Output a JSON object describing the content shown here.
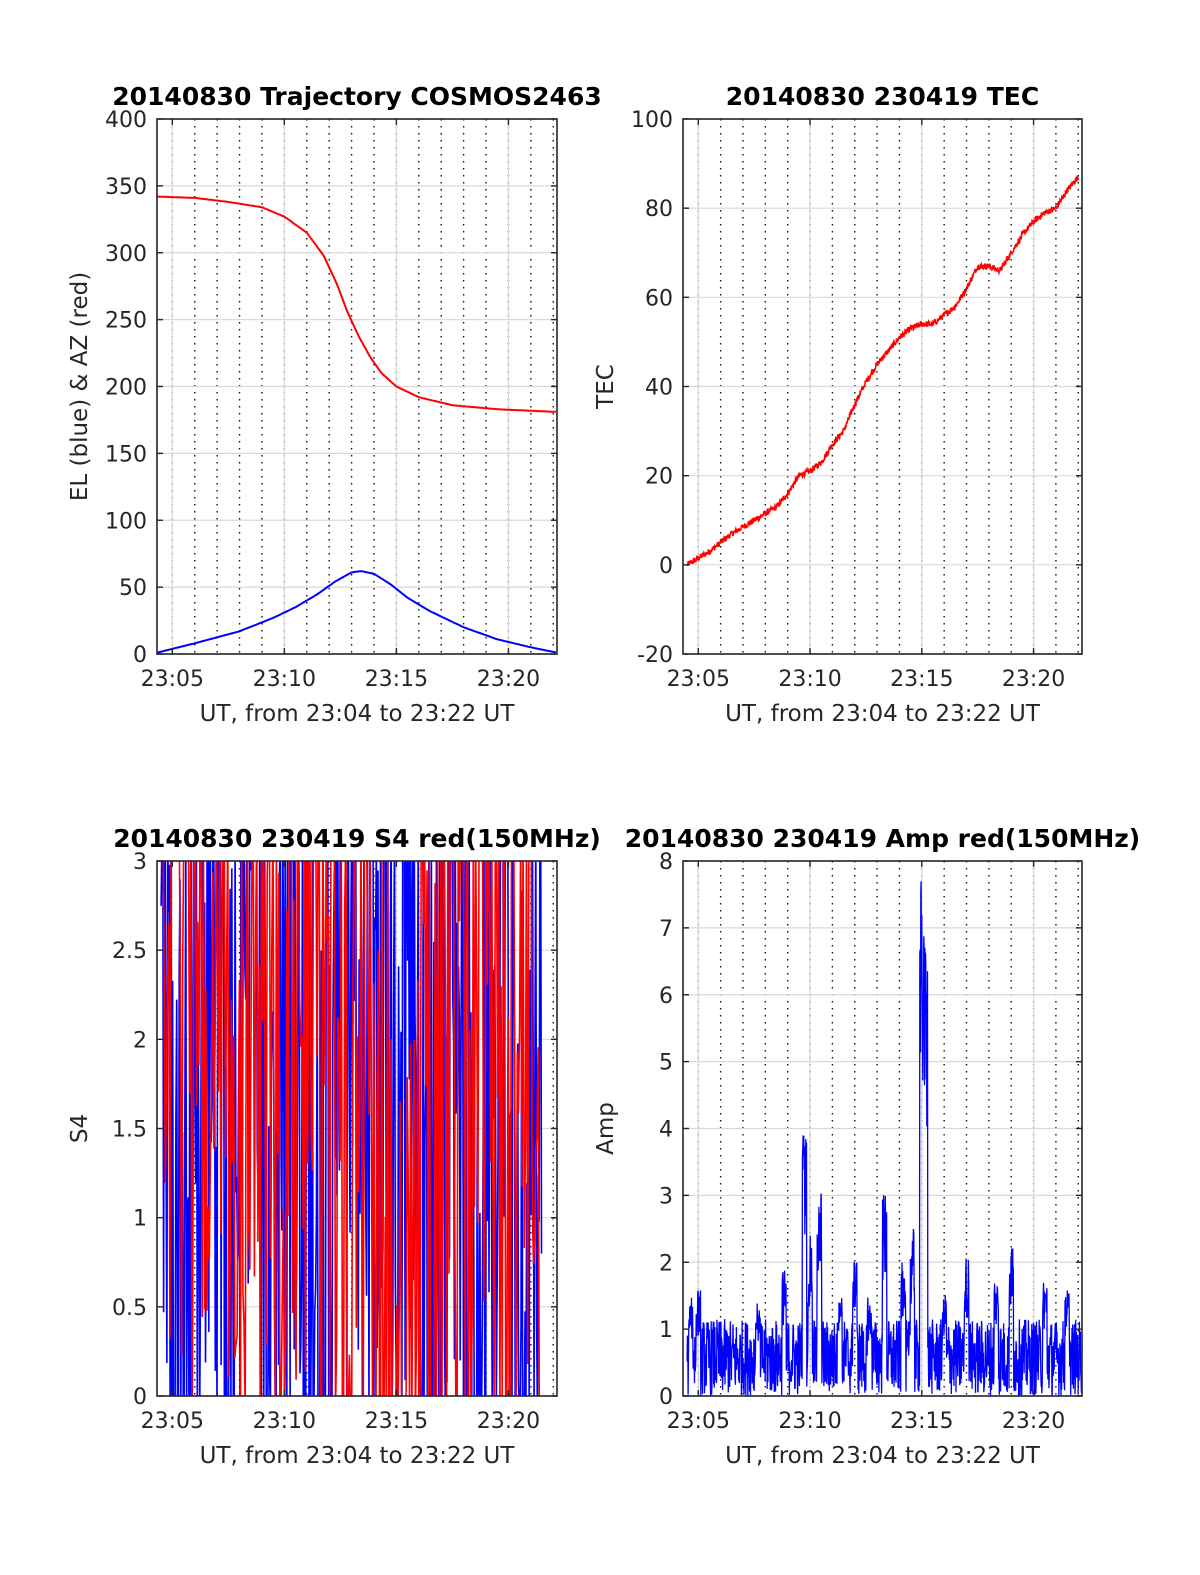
{
  "figure": {
    "panels": [
      {
        "id": "trajectory",
        "title": "20140830 Trajectory COSMOS2463",
        "xlabel": "UT, from 23:04 to 23:22 UT",
        "ylabel": "EL (blue) & AZ (red)"
      },
      {
        "id": "tec",
        "title": "20140830 230419 TEC",
        "xlabel": "UT, from 23:04 to 23:22 UT",
        "ylabel": "TEC"
      },
      {
        "id": "s4",
        "title": "20140830 230419 S4 red(150MHz)",
        "xlabel": "UT, from 23:04 to 23:22 UT",
        "ylabel": "S4"
      },
      {
        "id": "amp",
        "title": "20140830 230419 Amp red(150MHz)",
        "xlabel": "UT, from 23:04 to 23:22 UT",
        "ylabel": "Amp"
      }
    ]
  },
  "chart_data": [
    {
      "type": "line",
      "title": "20140830 Trajectory COSMOS2463",
      "xlabel": "UT, from 23:04 to 23:22 UT",
      "ylabel": "EL (blue) & AZ (red)",
      "xlim": [
        "23:04:19",
        "23:22:10"
      ],
      "ylim": [
        0,
        400
      ],
      "xticks": [
        "23:05",
        "23:10",
        "23:15",
        "23:20"
      ],
      "yticks": [
        0,
        50,
        100,
        150,
        200,
        250,
        300,
        350,
        400
      ],
      "grid": true,
      "colors": {
        "EL": "#0000ff",
        "AZ": "#ff0000"
      },
      "series": [
        {
          "x": [
            "23:04:19",
            "23:06:00",
            "23:08:00",
            "23:09:30",
            "23:10:30",
            "23:11:30",
            "23:12:15",
            "23:13:00",
            "23:13:25",
            "23:14:00",
            "23:14:45",
            "23:15:30",
            "23:16:30",
            "23:18:00",
            "23:19:30",
            "23:21:00",
            "23:22:10"
          ],
          "values": [
            1,
            8,
            17,
            27,
            35,
            45,
            54,
            61,
            62,
            60,
            52,
            42,
            32,
            20,
            11,
            5,
            1
          ]
        },
        {
          "x": [
            "23:04:19",
            "23:06:00",
            "23:07:30",
            "23:09:00",
            "23:10:00",
            "23:11:00",
            "23:11:45",
            "23:12:20",
            "23:12:50",
            "23:13:20",
            "23:13:50",
            "23:14:20",
            "23:15:00",
            "23:16:00",
            "23:17:30",
            "23:19:30",
            "23:22:10"
          ],
          "values": [
            342,
            341,
            338,
            334,
            327,
            315,
            298,
            277,
            255,
            237,
            222,
            210,
            200,
            192,
            186,
            183,
            181
          ]
        }
      ]
    },
    {
      "type": "line",
      "title": "20140830 230419 TEC",
      "xlabel": "UT, from 23:04 to 23:22 UT",
      "ylabel": "TEC",
      "xlim": [
        "23:04:19",
        "23:22:10"
      ],
      "ylim": [
        -20,
        100
      ],
      "xticks": [
        "23:05",
        "23:10",
        "23:15",
        "23:20"
      ],
      "yticks": [
        -20,
        0,
        20,
        40,
        60,
        80,
        100
      ],
      "grid": true,
      "colors": {
        "TEC": "#ff0000"
      },
      "series": [
        {
          "x": [
            "23:04:30",
            "23:05:30",
            "23:06:30",
            "23:07:30",
            "23:08:30",
            "23:09:00",
            "23:09:30",
            "23:10:00",
            "23:10:30",
            "23:11:00",
            "23:11:30",
            "23:12:00",
            "23:12:30",
            "23:13:00",
            "23:13:30",
            "23:14:00",
            "23:14:30",
            "23:15:00",
            "23:15:30",
            "23:16:00",
            "23:16:30",
            "23:17:00",
            "23:17:30",
            "23:18:00",
            "23:18:30",
            "23:19:00",
            "23:19:30",
            "23:20:00",
            "23:20:30",
            "23:21:00",
            "23:21:30",
            "23:22:00"
          ],
          "values": [
            0,
            3,
            7,
            10,
            13,
            16,
            20,
            21,
            23,
            27,
            30,
            36,
            41,
            45,
            48,
            51,
            53,
            54,
            54,
            56,
            58,
            62,
            67,
            67,
            66,
            70,
            74,
            77,
            79,
            80,
            84,
            87
          ]
        }
      ]
    },
    {
      "type": "line",
      "title": "20140830 230419 S4 red(150MHz)",
      "xlabel": "UT, from 23:04 to 23:22 UT",
      "ylabel": "S4",
      "xlim": [
        "23:04:19",
        "23:22:10"
      ],
      "ylim": [
        0,
        3
      ],
      "xticks": [
        "23:05",
        "23:10",
        "23:15",
        "23:20"
      ],
      "yticks": [
        0,
        0.5,
        1,
        1.5,
        2,
        2.5,
        3
      ],
      "grid": true,
      "colors": {
        "blue_trace": "#0000ff",
        "red_trace": "#ff0000"
      },
      "series": [
        {
          "x": [
            "23:04:30",
            "23:05:30",
            "23:06:30",
            "23:07:30",
            "23:08:30",
            "23:09:30",
            "23:10:30",
            "23:11:30",
            "23:12:30",
            "23:13:30",
            "23:14:30",
            "23:15:00",
            "23:15:30",
            "23:16:30",
            "23:17:30",
            "23:18:30",
            "23:19:30",
            "23:20:30",
            "23:21:30"
          ],
          "values": [
            3,
            0,
            3,
            0,
            3,
            0,
            3,
            0,
            3,
            1.2,
            3,
            0.6,
            3,
            0,
            3,
            0,
            3,
            0,
            3
          ]
        },
        {
          "x": [
            "23:04:35",
            "23:05:00",
            "23:06:00",
            "23:07:00",
            "23:08:30",
            "23:10:00",
            "23:10:10",
            "23:11:30",
            "23:13:00",
            "23:13:20",
            "23:15:00",
            "23:16:00",
            "23:17:30",
            "23:19:00",
            "23:20:30",
            "23:21:30"
          ],
          "values": [
            3,
            2.5,
            3,
            2.5,
            2.5,
            1.35,
            3,
            2.1,
            1.3,
            2.5,
            0,
            0.6,
            2.2,
            2.5,
            2.3,
            2
          ]
        }
      ]
    },
    {
      "type": "line",
      "title": "20140830 230419 Amp red(150MHz)",
      "xlabel": "UT, from 23:04 to 23:22 UT",
      "ylabel": "Amp",
      "xlim": [
        "23:04:19",
        "23:22:10"
      ],
      "ylim": [
        0,
        8
      ],
      "xticks": [
        "23:05",
        "23:10",
        "23:15",
        "23:20"
      ],
      "yticks": [
        0,
        1,
        2,
        3,
        4,
        5,
        6,
        7,
        8
      ],
      "grid": true,
      "colors": {
        "Amp": "#0000ff"
      },
      "series": [
        {
          "x": [
            "23:04:40",
            "23:05:00",
            "23:07:40",
            "23:08:50",
            "23:09:45",
            "23:10:00",
            "23:10:25",
            "23:11:20",
            "23:12:00",
            "23:12:40",
            "23:13:20",
            "23:14:10",
            "23:14:35",
            "23:15:00",
            "23:15:10",
            "23:16:00",
            "23:17:00",
            "23:18:20",
            "23:19:00",
            "23:20:30",
            "23:21:30"
          ],
          "values": [
            1.5,
            1.6,
            1.4,
            1.9,
            4.0,
            2.4,
            3.1,
            1.7,
            2.1,
            1.5,
            3.05,
            2.0,
            2.5,
            7.8,
            7.0,
            1.6,
            2.1,
            1.8,
            2.3,
            1.8,
            1.6
          ]
        }
      ]
    }
  ]
}
